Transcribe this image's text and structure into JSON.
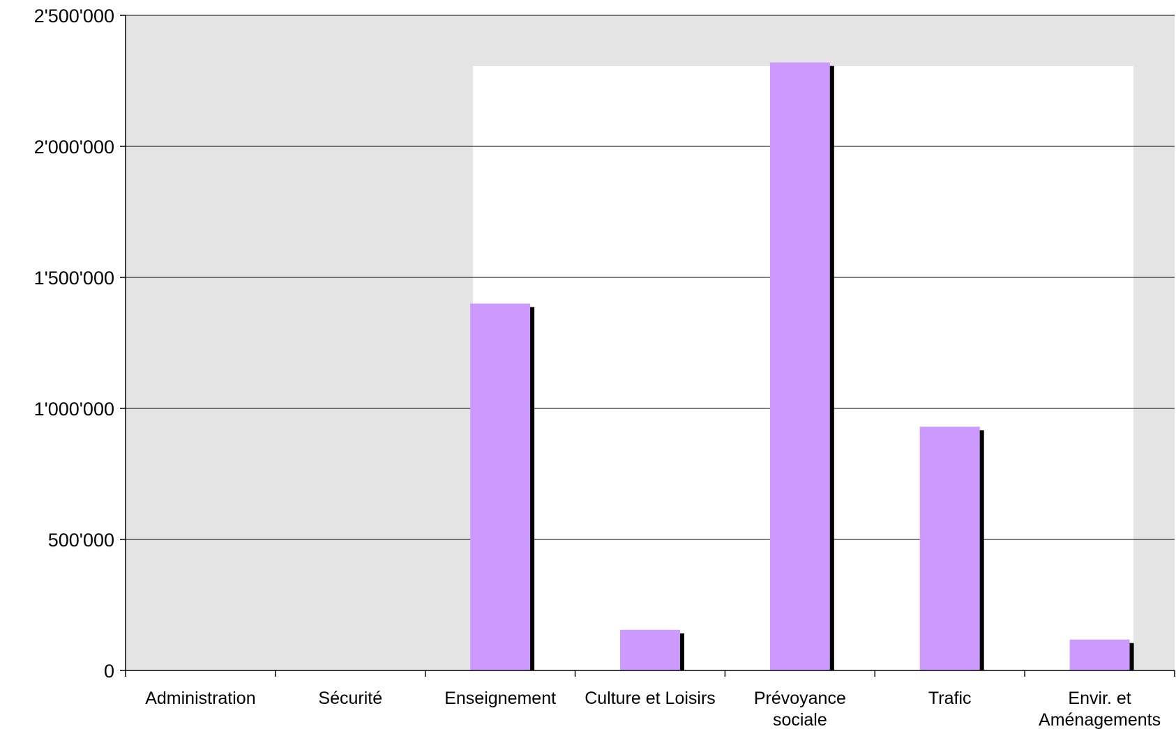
{
  "chart_data": {
    "type": "bar",
    "categories": [
      [
        "Administration"
      ],
      [
        "Sécurité"
      ],
      [
        "Enseignement"
      ],
      [
        "Culture et Loisirs"
      ],
      [
        "Prévoyance",
        "sociale"
      ],
      [
        "Trafic"
      ],
      [
        "Envir. et",
        "Aménagements"
      ]
    ],
    "values": [
      0,
      0,
      1400000,
      155000,
      2320000,
      930000,
      118000
    ],
    "ylim": [
      0,
      2500000
    ],
    "yticks": [
      0,
      500000,
      1000000,
      1500000,
      2000000,
      2500000
    ],
    "ytick_labels": [
      "0",
      "500'000",
      "1'000'000",
      "1'500'000",
      "2'000'000",
      "2'500'000"
    ],
    "title": "",
    "xlabel": "",
    "ylabel": "",
    "grid": "horizontal",
    "legend": "none",
    "colors": {
      "bar": "#cc99ff",
      "bar_shadow": "#000000",
      "plot_background": "#e4e4e4",
      "highlight_panel": "#ffffff",
      "gridline": "#000000"
    }
  }
}
